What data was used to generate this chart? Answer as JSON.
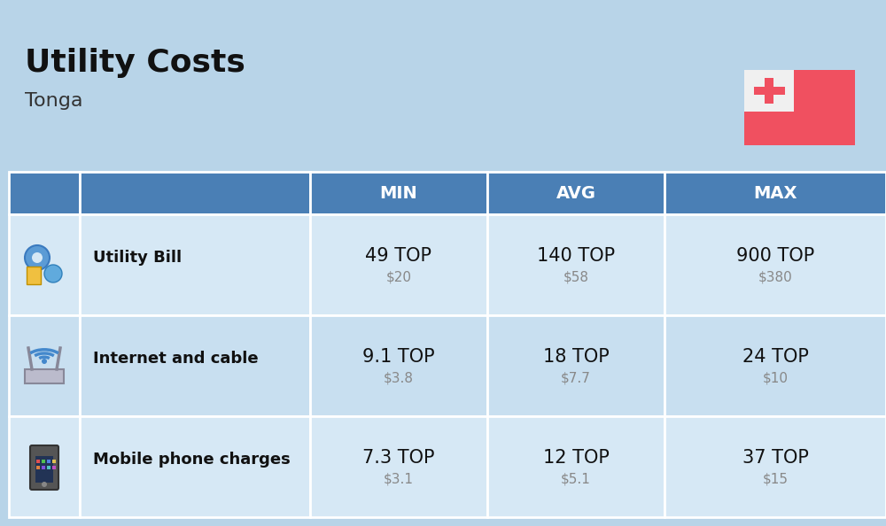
{
  "title": "Utility Costs",
  "subtitle": "Tonga",
  "background_color": "#b8d4e8",
  "header_bg_color": "#4a7fb5",
  "header_text_color": "#ffffff",
  "row_bg_color_1": "#d6e8f5",
  "row_bg_color_2": "#c8dff0",
  "rows": [
    {
      "label": "Utility Bill",
      "min_top": "49 TOP",
      "min_usd": "$20",
      "avg_top": "140 TOP",
      "avg_usd": "$58",
      "max_top": "900 TOP",
      "max_usd": "$380"
    },
    {
      "label": "Internet and cable",
      "min_top": "9.1 TOP",
      "min_usd": "$3.8",
      "avg_top": "18 TOP",
      "avg_usd": "$7.7",
      "max_top": "24 TOP",
      "max_usd": "$10"
    },
    {
      "label": "Mobile phone charges",
      "min_top": "7.3 TOP",
      "min_usd": "$3.1",
      "avg_top": "12 TOP",
      "avg_usd": "$5.1",
      "max_top": "37 TOP",
      "max_usd": "$15"
    }
  ],
  "flag_red": "#f05060",
  "flag_white": "#f0f0f0",
  "title_fontsize": 26,
  "subtitle_fontsize": 16,
  "header_fontsize": 14,
  "label_fontsize": 13,
  "value_fontsize": 15,
  "usd_fontsize": 11
}
